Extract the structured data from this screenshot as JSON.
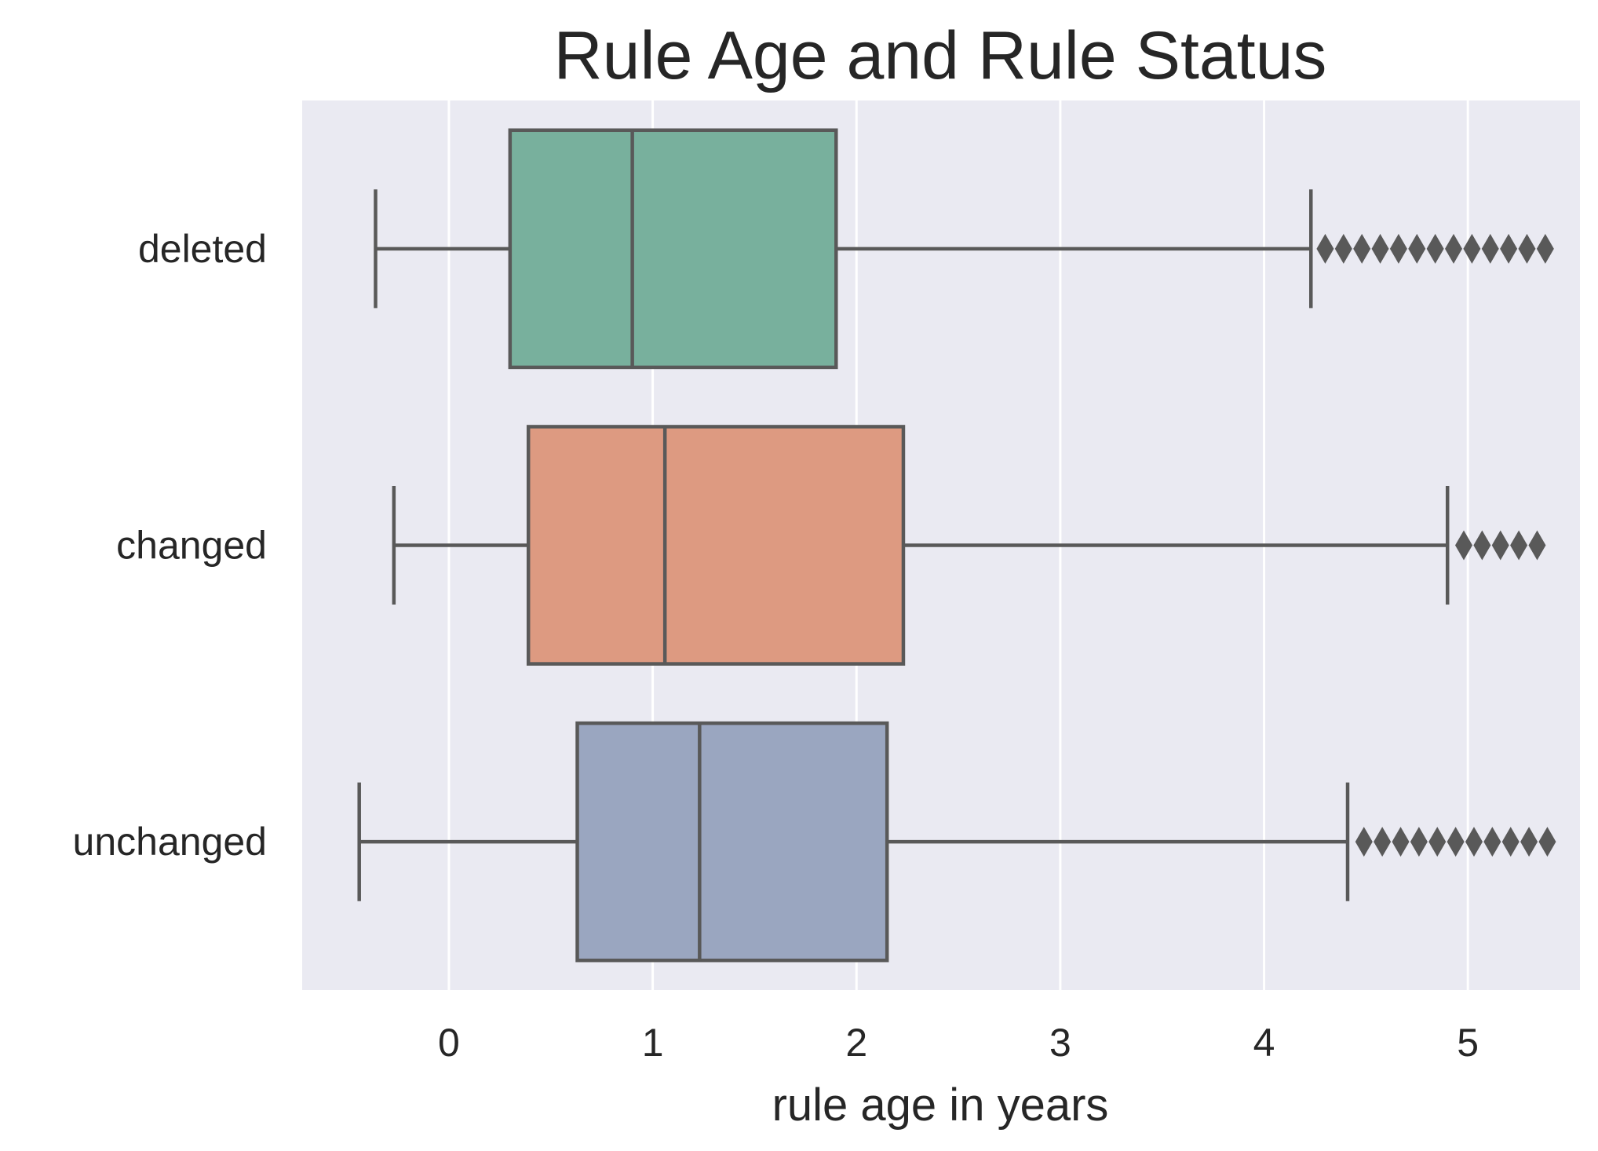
{
  "chart_data": {
    "type": "boxplot",
    "orientation": "horizontal",
    "title": "Rule Age and Rule Status",
    "xlabel": "rule age in years",
    "ylabel": "",
    "xlim": [
      -0.72,
      5.55
    ],
    "xticks": [
      0,
      1,
      2,
      3,
      4,
      5
    ],
    "xtick_labels": [
      "0",
      "1",
      "2",
      "3",
      "4",
      "5"
    ],
    "grid": true,
    "categories": [
      "deleted",
      "changed",
      "unchanged"
    ],
    "colors": {
      "background": "#eaeaf2",
      "grid": "#ffffff",
      "edge": "#595959",
      "text": "#262626",
      "boxes": [
        "#78b09d",
        "#dd9a81",
        "#9aa6c0"
      ]
    },
    "series": [
      {
        "name": "deleted",
        "whisker_low": -0.36,
        "q1": 0.3,
        "median": 0.9,
        "q3": 1.9,
        "whisker_high": 4.23,
        "outliers": [
          4.3,
          4.39,
          4.48,
          4.57,
          4.66,
          4.75,
          4.84,
          4.93,
          5.02,
          5.11,
          5.2,
          5.29,
          5.38
        ]
      },
      {
        "name": "changed",
        "whisker_low": -0.27,
        "q1": 0.39,
        "median": 1.06,
        "q3": 2.23,
        "whisker_high": 4.9,
        "outliers": [
          4.98,
          5.07,
          5.16,
          5.25,
          5.34
        ]
      },
      {
        "name": "unchanged",
        "whisker_low": -0.44,
        "q1": 0.63,
        "median": 1.23,
        "q3": 2.15,
        "whisker_high": 4.41,
        "outliers": [
          4.49,
          4.58,
          4.67,
          4.76,
          4.85,
          4.94,
          5.03,
          5.12,
          5.21,
          5.3,
          5.39
        ]
      }
    ]
  }
}
